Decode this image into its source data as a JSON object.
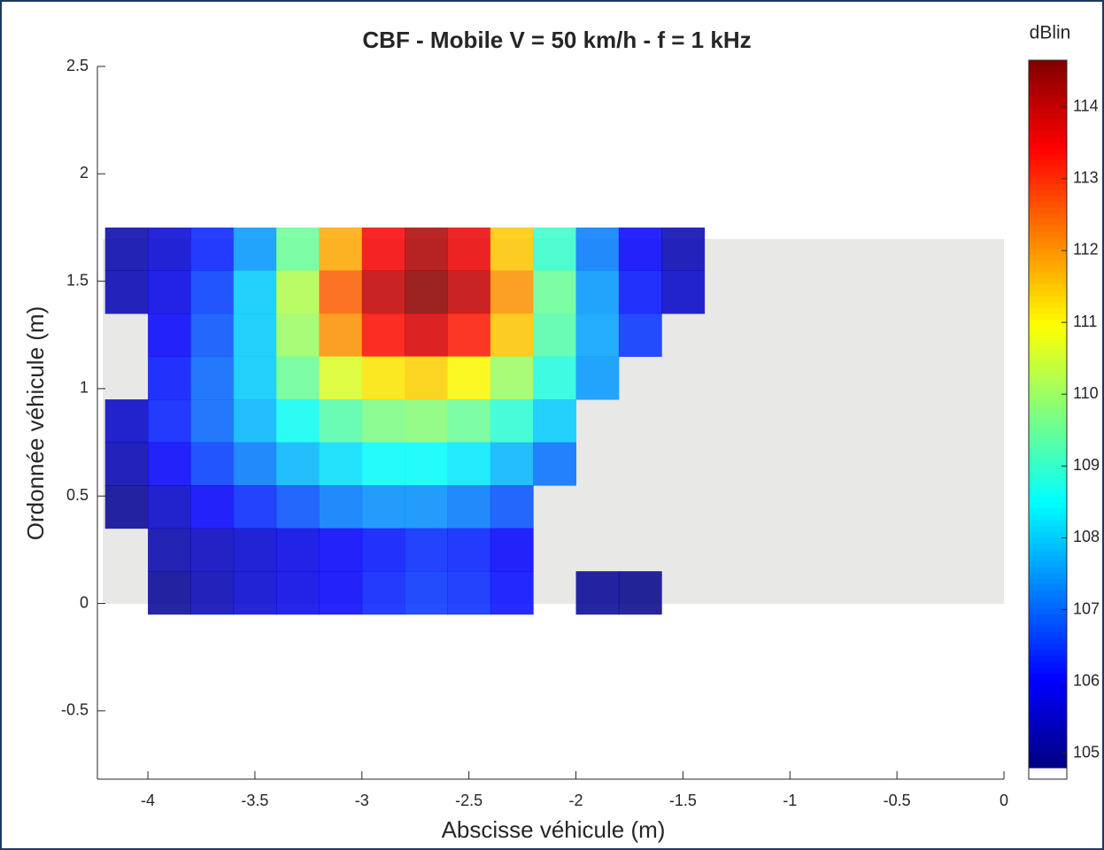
{
  "chart_data": {
    "type": "heatmap",
    "title": "CBF - Mobile V = 50 km/h - f = 1 kHz",
    "x_label": "Abscisse véhicule (m)",
    "y_label": "Ordonnée véhicule (m)",
    "colorbar_label": "dBlin",
    "colormap": "jet",
    "x": [
      -4.1,
      -3.9,
      -3.7,
      -3.5,
      -3.3,
      -3.1,
      -2.9,
      -2.7,
      -2.5,
      -2.3,
      -2.1,
      -1.9,
      -1.7,
      -1.5
    ],
    "y": [
      1.65,
      1.45,
      1.25,
      1.05,
      0.85,
      0.65,
      0.45,
      0.25,
      0.05
    ],
    "z": [
      [
        105.2,
        105.6,
        106.3,
        107.5,
        109.5,
        111.8,
        113.5,
        114.2,
        113.6,
        111.5,
        109,
        107.2,
        106,
        105.3
      ],
      [
        105.3,
        105.8,
        106.6,
        108,
        110.2,
        112.5,
        114,
        114.5,
        114,
        112,
        109.5,
        107.5,
        106.2,
        105.5
      ],
      [
        null,
        106,
        106.8,
        108,
        110,
        112,
        113.3,
        113.8,
        113.2,
        111.5,
        109.3,
        107.6,
        106.5,
        null
      ],
      [
        null,
        106.2,
        107,
        108,
        109.5,
        110.6,
        111.2,
        111.4,
        111,
        110,
        108.8,
        107.5,
        null,
        null
      ],
      [
        105.5,
        106.3,
        107,
        107.8,
        108.6,
        109.3,
        109.7,
        109.8,
        109.5,
        108.9,
        108,
        null,
        null,
        null
      ],
      [
        105.3,
        106,
        106.6,
        107.2,
        107.8,
        108.2,
        108.5,
        108.5,
        108.3,
        107.8,
        107.1,
        null,
        null,
        null
      ],
      [
        105,
        105.5,
        106,
        106.4,
        106.8,
        107.2,
        107.4,
        107.4,
        107.2,
        106.8,
        null,
        null,
        null,
        null
      ],
      [
        null,
        105.2,
        105.4,
        105.6,
        105.8,
        106,
        106.2,
        106.4,
        106.3,
        106,
        null,
        null,
        null,
        null
      ],
      [
        null,
        105,
        105.3,
        105.6,
        105.8,
        106,
        106.3,
        106.5,
        106.4,
        106.1,
        null,
        105,
        104.9,
        null
      ]
    ],
    "xlim": [
      -4.236,
      0
    ],
    "xticks": [
      -4,
      -3.5,
      -3,
      -2.5,
      -2,
      -1.5,
      -1,
      -0.5,
      0
    ],
    "ylim": [
      -0.818,
      2.5
    ],
    "yticks": [
      -0.5,
      0,
      0.5,
      1,
      1.5,
      2,
      2.5
    ],
    "clim": [
      104.8,
      114.65
    ],
    "cticks": [
      105,
      106,
      107,
      108,
      109,
      110,
      111,
      112,
      113,
      114
    ]
  }
}
